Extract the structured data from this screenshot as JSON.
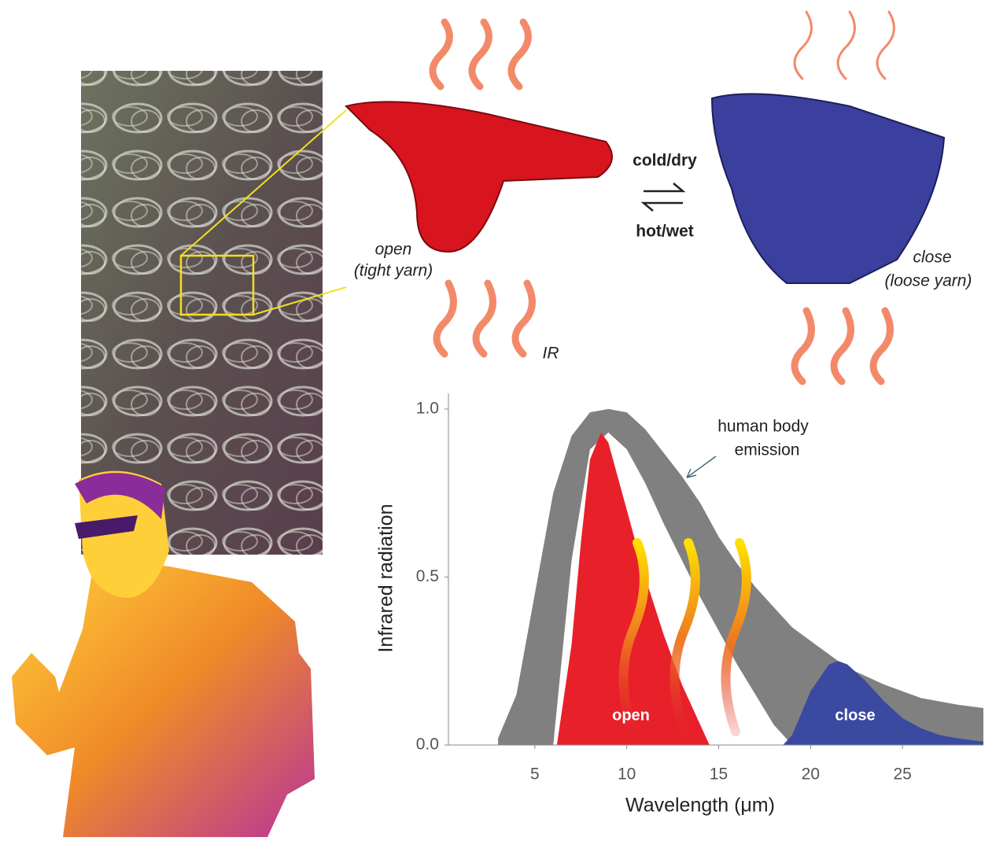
{
  "chart_data": {
    "type": "area",
    "xlabel": "Wavelength (μm)",
    "ylabel": "Infrared radiation",
    "xlim": [
      0.3,
      29.4
    ],
    "ylim": [
      0,
      1.07
    ],
    "xticks": [
      5,
      10,
      15,
      20,
      25
    ],
    "yticks": [
      {
        "value": 0,
        "label": "0.0"
      },
      {
        "value": 0.5,
        "label": "0.5"
      },
      {
        "value": 1,
        "label": "1.0"
      }
    ],
    "annotation": [
      "human body",
      "emission"
    ],
    "series": [
      {
        "name": "human body emission",
        "color": "#808080",
        "x": [
          3,
          4,
          5,
          6,
          7,
          8,
          9,
          10,
          11,
          12,
          13,
          14,
          15,
          16,
          17,
          18,
          19,
          20,
          22,
          24,
          26,
          28,
          29.4
        ],
        "values": [
          0.02,
          0.15,
          0.45,
          0.75,
          0.92,
          0.99,
          1.0,
          0.99,
          0.94,
          0.87,
          0.8,
          0.72,
          0.62,
          0.54,
          0.47,
          0.41,
          0.35,
          0.31,
          0.23,
          0.18,
          0.14,
          0.12,
          0.11
        ],
        "lower": [
          0,
          0,
          0,
          0,
          0.55,
          0.88,
          0.93,
          0.88,
          0.78,
          0.66,
          0.55,
          0.44,
          0.34,
          0.24,
          0.15,
          0.06,
          0,
          0,
          0,
          0,
          0,
          0,
          0
        ]
      },
      {
        "name": "open",
        "color": "#e8202a",
        "x": [
          6.2,
          7,
          7.5,
          8,
          8.6,
          9,
          10,
          11,
          12,
          13,
          14,
          14.5
        ],
        "values": [
          0,
          0.3,
          0.6,
          0.85,
          0.93,
          0.9,
          0.7,
          0.5,
          0.33,
          0.18,
          0.06,
          0
        ]
      },
      {
        "name": "close",
        "color": "#3a4aa0",
        "x": [
          18.5,
          19,
          20,
          21,
          21.5,
          22,
          23,
          24,
          25,
          26,
          27,
          28,
          29.4
        ],
        "values": [
          0,
          0.03,
          0.16,
          0.24,
          0.25,
          0.24,
          0.19,
          0.13,
          0.08,
          0.05,
          0.03,
          0.02,
          0.01
        ]
      }
    ]
  },
  "diagram": {
    "cold": "cold/dry",
    "hot": "hot/wet",
    "open": [
      "open",
      "(tight yarn)"
    ],
    "close": [
      "close",
      "(loose yarn)"
    ],
    "ir": "IR"
  }
}
